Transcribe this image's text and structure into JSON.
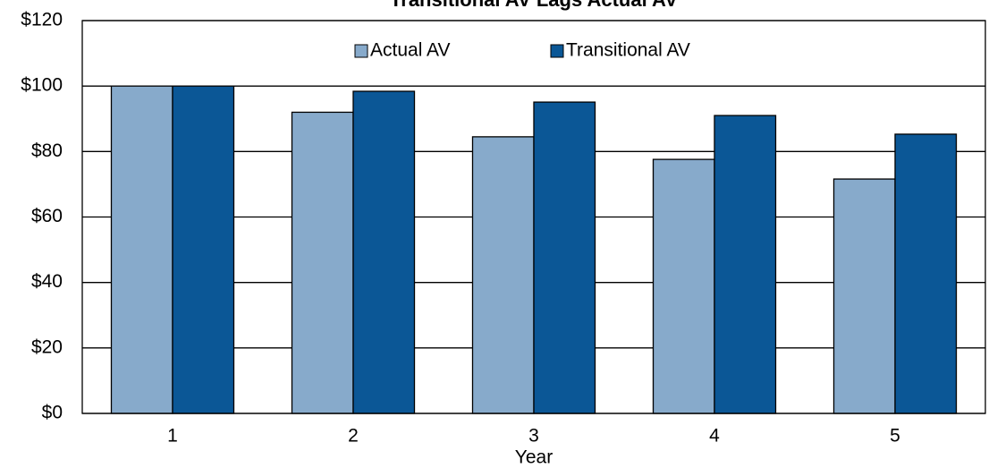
{
  "chart_data": {
    "type": "bar",
    "title": "Transitional AV Lags Actual AV",
    "x_label": "Year",
    "categories": [
      "1",
      "2",
      "3",
      "4",
      "5"
    ],
    "series": [
      {
        "name": "Actual AV",
        "color": "#87aacb",
        "values": [
          100,
          92,
          84.5,
          77.6,
          71.6
        ]
      },
      {
        "name": "Transitional AV",
        "color": "#0b5796",
        "values": [
          100,
          98.4,
          95.1,
          91,
          85.3
        ]
      }
    ],
    "ylim": [
      0,
      120
    ],
    "yticks": [
      {
        "value": 0,
        "label": "$0"
      },
      {
        "value": 20,
        "label": "$20"
      },
      {
        "value": 40,
        "label": "$40"
      },
      {
        "value": 60,
        "label": "$60"
      },
      {
        "value": 80,
        "label": "$80"
      },
      {
        "value": 100,
        "label": "$100"
      },
      {
        "value": 120,
        "label": "$120"
      }
    ],
    "grid": true,
    "legend": "top"
  }
}
